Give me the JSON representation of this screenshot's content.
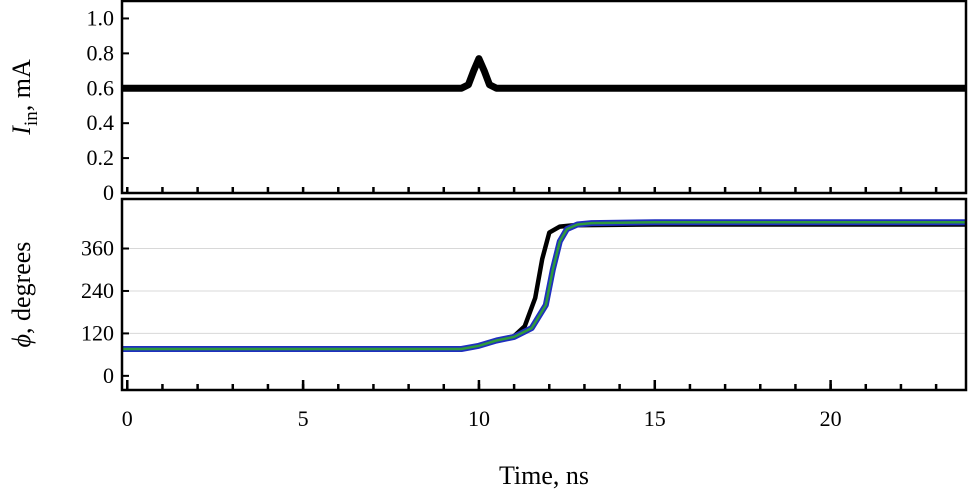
{
  "chart_data": [
    {
      "type": "line",
      "ylabel_symbol": "I",
      "ylabel_subscript": "in",
      "ylabel_unit": ", mA",
      "xlim": [
        -0.15,
        23.85
      ],
      "ylim": [
        0,
        1.1
      ],
      "yticks": [
        0,
        0.2,
        0.4,
        0.6,
        0.8,
        {
          "value": 1,
          "label": "1.0"
        }
      ],
      "grid": false,
      "series": [
        {
          "color": "#000000",
          "x": [
            -0.15,
            9.5,
            9.7,
            9.85,
            10,
            10.15,
            10.3,
            10.5,
            23.85
          ],
          "values": [
            0.6,
            0.6,
            0.62,
            0.7,
            0.77,
            0.7,
            0.62,
            0.6,
            0.6
          ]
        }
      ]
    },
    {
      "type": "line",
      "ylabel_symbol": "ϕ",
      "ylabel_unit": ", degrees",
      "xlabel": "Time, ns",
      "xlim": [
        -0.15,
        23.85
      ],
      "ylim": [
        -40,
        500
      ],
      "xticks": [
        0,
        5,
        10,
        15,
        20
      ],
      "minor_xticks": [
        0,
        1,
        2,
        3,
        4,
        5,
        6,
        7,
        8,
        9,
        10,
        11,
        12,
        13,
        14,
        15,
        16,
        17,
        18,
        19,
        20,
        21,
        22,
        23
      ],
      "yticks": [
        0,
        120,
        240,
        360
      ],
      "grid": true,
      "series": [
        {
          "color": "#000000",
          "x": [
            -0.15,
            9.5,
            10,
            10.5,
            11,
            11.3,
            11.6,
            11.8,
            12,
            12.3,
            12.7,
            15,
            23.85
          ],
          "values": [
            76,
            76,
            85,
            100,
            112,
            140,
            220,
            330,
            405,
            422,
            426,
            428,
            428
          ]
        },
        {
          "color": "#1f2fbf",
          "x": [
            -0.15,
            9.5,
            10,
            10.5,
            11,
            11.5,
            11.9,
            12.1,
            12.3,
            12.5,
            12.8,
            13.2,
            15,
            23.85
          ],
          "values": [
            76,
            76,
            85,
            100,
            110,
            135,
            200,
            300,
            380,
            415,
            428,
            432,
            434,
            434
          ]
        },
        {
          "color": "#2e9a3c",
          "x": [
            -0.15,
            9.5,
            10,
            10.5,
            11,
            11.5,
            11.9,
            12.1,
            12.3,
            12.5,
            12.8,
            13.2,
            15,
            23.85
          ],
          "values": [
            76,
            76,
            85,
            100,
            110,
            135,
            200,
            300,
            380,
            415,
            428,
            432,
            434,
            434
          ]
        }
      ]
    }
  ]
}
